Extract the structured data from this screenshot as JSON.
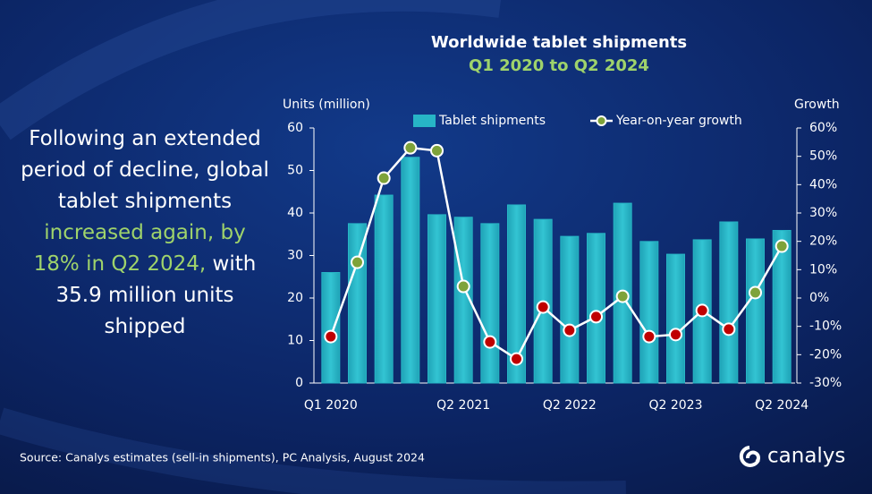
{
  "chart_data": {
    "type": "bar_line",
    "title": "Worldwide tablet shipments",
    "subtitle": "Q1 2020 to Q2 2024",
    "y_label": "Units (million)",
    "y2_label": "Growth",
    "categories": [
      "Q1 2020",
      null,
      null,
      null,
      null,
      "Q2 2021",
      null,
      null,
      null,
      "Q2 2022",
      null,
      null,
      null,
      "Q2 2023",
      null,
      null,
      null,
      "Q2 2024"
    ],
    "series": [
      {
        "name": "Tablet shipments",
        "type": "bar",
        "color": "#27b5c6",
        "values": [
          26,
          37.5,
          44.2,
          53.1,
          39.6,
          39,
          37.5,
          41.9,
          38.5,
          34.5,
          35.2,
          42.3,
          33.3,
          30.3,
          33.7,
          37.9,
          33.9,
          35.9
        ]
      },
      {
        "name": "Year-on-year growth",
        "type": "line",
        "axis": "y2",
        "color": "#ffffff",
        "values": [
          -13.6,
          12.6,
          42.3,
          53,
          52,
          4.1,
          -15.5,
          -21.5,
          -3.2,
          -11.4,
          -6.6,
          0.6,
          -13.6,
          -12.9,
          -4.4,
          -11,
          1.9,
          18.3
        ],
        "marker_colors": [
          "#c00000",
          "#7ea33a",
          "#7ea33a",
          "#7ea33a",
          "#7ea33a",
          "#7ea33a",
          "#c00000",
          "#c00000",
          "#c00000",
          "#c00000",
          "#c00000",
          "#7ea33a",
          "#c00000",
          "#c00000",
          "#c00000",
          "#c00000",
          "#7ea33a",
          "#7ea33a"
        ]
      }
    ],
    "ylim": [
      0,
      60
    ],
    "yticks": [
      0,
      10,
      20,
      30,
      40,
      50,
      60
    ],
    "y2lim": [
      -30,
      60
    ],
    "y2ticks": [
      {
        "value": -30,
        "label": "-30%"
      },
      {
        "value": -20,
        "label": "-20%"
      },
      {
        "value": -10,
        "label": "-10%"
      },
      {
        "value": 0,
        "label": "0%"
      },
      {
        "value": 10,
        "label": "10%"
      },
      {
        "value": 20,
        "label": "20%"
      },
      {
        "value": 30,
        "label": "30%"
      },
      {
        "value": 40,
        "label": "40%"
      },
      {
        "value": 50,
        "label": "50%"
      },
      {
        "value": 60,
        "label": "60%"
      }
    ],
    "annotation": [
      "Following an extended period of decline, global tablet shipments ",
      "increased again, by 18% in Q2 2024,",
      " with 35.9 million units shipped"
    ],
    "annotation_highlight_color": "#9fd36b",
    "source": "Source:  Canalys estimates (sell-in shipments), PC Analysis, August 2024",
    "brand": "canalys"
  }
}
